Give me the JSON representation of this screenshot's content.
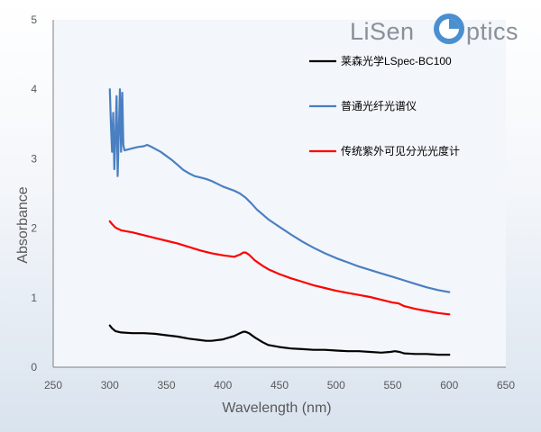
{
  "logo": {
    "text_left": "LiSen",
    "text_right": "ptics",
    "color_gray": "#8a9099",
    "color_blue": "#4a8fd0"
  },
  "chart_data": {
    "type": "line",
    "title": "",
    "xlabel": "Wavelength (nm)",
    "ylabel": "Absorbance",
    "xlim": [
      250,
      650
    ],
    "ylim": [
      0,
      5
    ],
    "xticks": [
      "250",
      "300",
      "350",
      "400",
      "450",
      "500",
      "550",
      "600",
      "650"
    ],
    "yticks": [
      "0",
      "1",
      "2",
      "3",
      "4",
      "5"
    ],
    "grid": false,
    "legend_position": "top-right, inside plot",
    "series": [
      {
        "name": "莱森光学LSpec-BC100",
        "color": "#000000",
        "points": [
          [
            300,
            0.6
          ],
          [
            302,
            0.56
          ],
          [
            305,
            0.52
          ],
          [
            310,
            0.5
          ],
          [
            320,
            0.49
          ],
          [
            330,
            0.49
          ],
          [
            340,
            0.48
          ],
          [
            350,
            0.46
          ],
          [
            360,
            0.44
          ],
          [
            370,
            0.41
          ],
          [
            380,
            0.39
          ],
          [
            385,
            0.38
          ],
          [
            390,
            0.38
          ],
          [
            400,
            0.4
          ],
          [
            410,
            0.45
          ],
          [
            415,
            0.49
          ],
          [
            418,
            0.51
          ],
          [
            420,
            0.51
          ],
          [
            423,
            0.49
          ],
          [
            428,
            0.43
          ],
          [
            435,
            0.36
          ],
          [
            440,
            0.32
          ],
          [
            450,
            0.29
          ],
          [
            460,
            0.27
          ],
          [
            470,
            0.26
          ],
          [
            480,
            0.25
          ],
          [
            490,
            0.25
          ],
          [
            500,
            0.24
          ],
          [
            510,
            0.23
          ],
          [
            520,
            0.23
          ],
          [
            530,
            0.22
          ],
          [
            540,
            0.21
          ],
          [
            548,
            0.22
          ],
          [
            552,
            0.23
          ],
          [
            556,
            0.22
          ],
          [
            560,
            0.2
          ],
          [
            570,
            0.19
          ],
          [
            580,
            0.19
          ],
          [
            590,
            0.18
          ],
          [
            600,
            0.18
          ]
        ]
      },
      {
        "name": "普通光纤光谱仪",
        "color": "#4a7fc1",
        "points": [
          [
            300,
            4.0
          ],
          [
            301,
            3.5
          ],
          [
            302,
            3.1
          ],
          [
            303,
            3.66
          ],
          [
            304,
            2.85
          ],
          [
            305,
            3.3
          ],
          [
            306,
            3.9
          ],
          [
            307,
            2.75
          ],
          [
            308,
            3.4
          ],
          [
            309,
            4.0
          ],
          [
            310,
            3.1
          ],
          [
            311,
            3.95
          ],
          [
            312,
            3.2
          ],
          [
            313,
            3.12
          ],
          [
            315,
            3.13
          ],
          [
            320,
            3.15
          ],
          [
            325,
            3.17
          ],
          [
            330,
            3.18
          ],
          [
            333,
            3.2
          ],
          [
            337,
            3.17
          ],
          [
            345,
            3.1
          ],
          [
            350,
            3.04
          ],
          [
            355,
            2.98
          ],
          [
            360,
            2.91
          ],
          [
            365,
            2.84
          ],
          [
            370,
            2.79
          ],
          [
            375,
            2.75
          ],
          [
            380,
            2.73
          ],
          [
            385,
            2.71
          ],
          [
            390,
            2.68
          ],
          [
            395,
            2.64
          ],
          [
            400,
            2.6
          ],
          [
            405,
            2.57
          ],
          [
            410,
            2.54
          ],
          [
            415,
            2.5
          ],
          [
            420,
            2.44
          ],
          [
            425,
            2.36
          ],
          [
            430,
            2.27
          ],
          [
            435,
            2.2
          ],
          [
            440,
            2.13
          ],
          [
            450,
            2.02
          ],
          [
            460,
            1.91
          ],
          [
            470,
            1.81
          ],
          [
            480,
            1.72
          ],
          [
            490,
            1.64
          ],
          [
            500,
            1.57
          ],
          [
            510,
            1.51
          ],
          [
            520,
            1.45
          ],
          [
            530,
            1.4
          ],
          [
            540,
            1.35
          ],
          [
            550,
            1.3
          ],
          [
            560,
            1.25
          ],
          [
            570,
            1.2
          ],
          [
            580,
            1.15
          ],
          [
            590,
            1.11
          ],
          [
            600,
            1.08
          ]
        ]
      },
      {
        "name": "传统紫外可见分光光度计",
        "color": "#ff0000",
        "points": [
          [
            300,
            2.1
          ],
          [
            302,
            2.06
          ],
          [
            305,
            2.01
          ],
          [
            310,
            1.97
          ],
          [
            320,
            1.94
          ],
          [
            330,
            1.9
          ],
          [
            340,
            1.86
          ],
          [
            350,
            1.82
          ],
          [
            360,
            1.78
          ],
          [
            370,
            1.73
          ],
          [
            380,
            1.68
          ],
          [
            390,
            1.64
          ],
          [
            400,
            1.61
          ],
          [
            410,
            1.59
          ],
          [
            415,
            1.62
          ],
          [
            418,
            1.65
          ],
          [
            420,
            1.65
          ],
          [
            423,
            1.62
          ],
          [
            428,
            1.54
          ],
          [
            435,
            1.46
          ],
          [
            440,
            1.41
          ],
          [
            450,
            1.34
          ],
          [
            460,
            1.28
          ],
          [
            470,
            1.23
          ],
          [
            480,
            1.18
          ],
          [
            490,
            1.14
          ],
          [
            500,
            1.1
          ],
          [
            510,
            1.07
          ],
          [
            520,
            1.04
          ],
          [
            530,
            1.01
          ],
          [
            540,
            0.97
          ],
          [
            550,
            0.93
          ],
          [
            555,
            0.92
          ],
          [
            560,
            0.88
          ],
          [
            570,
            0.84
          ],
          [
            580,
            0.81
          ],
          [
            590,
            0.78
          ],
          [
            600,
            0.76
          ]
        ]
      }
    ]
  }
}
